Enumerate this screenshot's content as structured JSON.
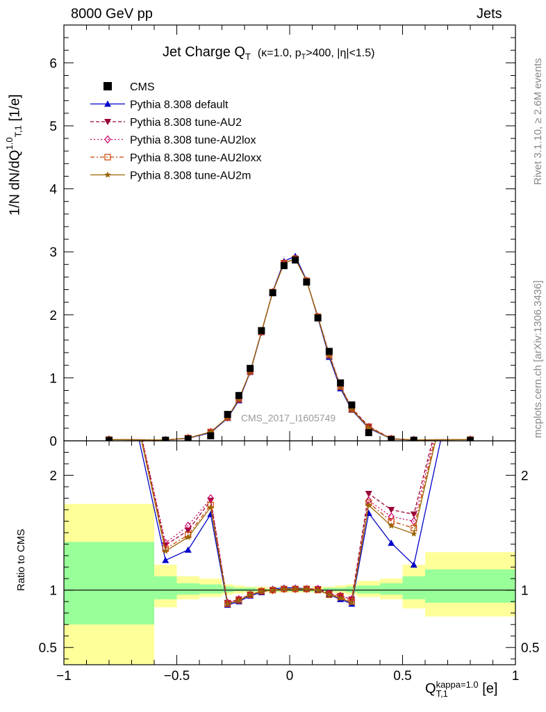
{
  "header": {
    "left": "8000 GeV pp",
    "right": "Jets"
  },
  "side": {
    "rivet": "Rivet 3.1.10, ≥ 2.6M events",
    "mcplots": "mcplots.cern.ch [arXiv:1306.3436]"
  },
  "chart_data": {
    "type": "line",
    "title_main": "Jet Charge Q",
    "title_sub": "T",
    "title_cond": "(κ=1.0, p",
    "title_cond_sub": "T",
    "title_cond_rest": ">400, |η|<1.5)",
    "watermark": "CMS_2017_I1605749",
    "ylabel": "1/N dN/dQ",
    "ylabel_sup": "1.0",
    "ylabel_sub": "T,1",
    "ylabel_unit": " [1/e]",
    "xlabel": "Q",
    "xlabel_sup": "kappa=1.0",
    "xlabel_sub": "T,1",
    "xlabel_unit": " [e]",
    "ratio_ylabel": "Ratio to CMS",
    "xlim": [
      -1.0,
      1.0
    ],
    "ylim": [
      0,
      6.6
    ],
    "ratio_ylim": [
      0.35,
      2.3
    ],
    "x_ticks": [
      "−1",
      "−0.5",
      "0",
      "0.5",
      "1"
    ],
    "x_tick_values": [
      -1,
      -0.5,
      0,
      0.5,
      1
    ],
    "y_ticks": [
      "0",
      "1",
      "2",
      "3",
      "4",
      "5",
      "6"
    ],
    "y_tick_values": [
      0,
      1,
      2,
      3,
      4,
      5,
      6
    ],
    "ratio_ticks": [
      "0.5",
      "1",
      "2"
    ],
    "ratio_tick_values": [
      0.5,
      1,
      2
    ],
    "x": [
      -0.8,
      -0.55,
      -0.45,
      -0.35,
      -0.275,
      -0.225,
      -0.175,
      -0.125,
      -0.075,
      -0.025,
      0.025,
      0.075,
      0.125,
      0.175,
      0.225,
      0.275,
      0.35,
      0.45,
      0.55,
      0.8
    ],
    "cms": [
      0.005,
      0.01,
      0.03,
      0.08,
      0.42,
      0.72,
      1.15,
      1.75,
      2.35,
      2.78,
      2.87,
      2.52,
      1.95,
      1.42,
      0.92,
      0.57,
      0.13,
      0.02,
      0.01,
      0.005
    ],
    "series": [
      {
        "name": "CMS",
        "color": "#000000",
        "marker": "square"
      },
      {
        "name": "Pythia 8.308 default",
        "color": "#0000cc",
        "marker": "triangle-up",
        "values": [
          0.02,
          0.012,
          0.04,
          0.13,
          0.36,
          0.64,
          1.09,
          1.72,
          2.37,
          2.85,
          2.93,
          2.55,
          1.95,
          1.33,
          0.83,
          0.49,
          0.2,
          0.03,
          0.01,
          0.02
        ],
        "ratio": [
          3.5,
          1.26,
          1.35,
          1.66,
          0.87,
          0.9,
          0.95,
          0.98,
          1.01,
          1.02,
          1.02,
          1.01,
          1.0,
          0.96,
          0.92,
          0.88,
          1.67,
          1.41,
          1.22,
          3.5
        ]
      },
      {
        "name": "Pythia 8.308 tune-AU2",
        "color": "#990033",
        "marker": "triangle-down",
        "values": [
          0.02,
          0.014,
          0.045,
          0.14,
          0.37,
          0.66,
          1.1,
          1.73,
          2.36,
          2.82,
          2.89,
          2.54,
          1.97,
          1.38,
          0.87,
          0.52,
          0.23,
          0.035,
          0.015,
          0.02
        ],
        "ratio": [
          3.6,
          1.39,
          1.52,
          1.78,
          0.89,
          0.92,
          0.96,
          0.99,
          1.0,
          1.01,
          1.01,
          1.01,
          1.01,
          0.97,
          0.95,
          0.92,
          1.84,
          1.7,
          1.66,
          3.6
        ]
      },
      {
        "name": "Pythia 8.308 tune-AU2lox",
        "color": "#cc0066",
        "marker": "diamond",
        "values": [
          0.02,
          0.014,
          0.045,
          0.14,
          0.37,
          0.66,
          1.1,
          1.73,
          2.36,
          2.82,
          2.89,
          2.54,
          1.97,
          1.37,
          0.87,
          0.51,
          0.22,
          0.033,
          0.015,
          0.02
        ],
        "ratio": [
          3.6,
          1.41,
          1.56,
          1.8,
          0.89,
          0.92,
          0.96,
          0.99,
          1.0,
          1.01,
          1.01,
          1.01,
          1.01,
          0.97,
          0.95,
          0.92,
          1.78,
          1.64,
          1.6,
          3.6
        ]
      },
      {
        "name": "Pythia 8.308 tune-AU2loxx",
        "color": "#cc4400",
        "marker": "square-open",
        "values": [
          0.02,
          0.013,
          0.043,
          0.14,
          0.37,
          0.66,
          1.1,
          1.73,
          2.36,
          2.82,
          2.89,
          2.54,
          1.97,
          1.36,
          0.86,
          0.5,
          0.22,
          0.033,
          0.015,
          0.02
        ],
        "ratio": [
          3.6,
          1.36,
          1.48,
          1.74,
          0.88,
          0.91,
          0.96,
          0.99,
          1.0,
          1.01,
          1.01,
          1.01,
          1.0,
          0.96,
          0.94,
          0.9,
          1.76,
          1.6,
          1.54,
          3.6
        ]
      },
      {
        "name": "Pythia 8.308 tune-AU2m",
        "color": "#996600",
        "marker": "star",
        "values": [
          0.02,
          0.013,
          0.043,
          0.14,
          0.37,
          0.66,
          1.1,
          1.73,
          2.36,
          2.82,
          2.89,
          2.54,
          1.97,
          1.36,
          0.86,
          0.5,
          0.21,
          0.032,
          0.014,
          0.02
        ],
        "ratio": [
          3.6,
          1.34,
          1.46,
          1.72,
          0.88,
          0.91,
          0.96,
          0.99,
          1.0,
          1.01,
          1.01,
          1.01,
          1.0,
          0.96,
          0.93,
          0.89,
          1.74,
          1.56,
          1.49,
          3.6
        ]
      }
    ],
    "bands": [
      {
        "x0": -1.0,
        "x1": -0.6,
        "g0": 0.7,
        "g1": 1.42,
        "y0": 0.35,
        "y1": 1.75
      },
      {
        "x0": -0.6,
        "x1": -0.5,
        "g0": 0.92,
        "g1": 1.12,
        "y0": 0.85,
        "y1": 1.22
      },
      {
        "x0": -0.5,
        "x1": -0.4,
        "g0": 0.96,
        "g1": 1.06,
        "y0": 0.92,
        "y1": 1.12
      },
      {
        "x0": -0.4,
        "x1": -0.3,
        "g0": 0.97,
        "g1": 1.05,
        "y0": 0.94,
        "y1": 1.1
      },
      {
        "x0": -0.3,
        "x1": -0.25,
        "g0": 0.98,
        "g1": 1.03,
        "y0": 0.96,
        "y1": 1.05
      },
      {
        "x0": -0.25,
        "x1": -0.2,
        "g0": 0.99,
        "g1": 1.02,
        "y0": 0.97,
        "y1": 1.04
      },
      {
        "x0": -0.2,
        "x1": -0.15,
        "g0": 0.99,
        "g1": 1.02,
        "y0": 0.98,
        "y1": 1.03
      },
      {
        "x0": -0.15,
        "x1": -0.1,
        "g0": 0.99,
        "g1": 1.01,
        "y0": 0.98,
        "y1": 1.03
      },
      {
        "x0": -0.1,
        "x1": -0.05,
        "g0": 0.99,
        "g1": 1.01,
        "y0": 0.98,
        "y1": 1.02
      },
      {
        "x0": -0.05,
        "x1": 0.0,
        "g0": 0.99,
        "g1": 1.01,
        "y0": 0.98,
        "y1": 1.02
      },
      {
        "x0": 0.0,
        "x1": 0.05,
        "g0": 0.99,
        "g1": 1.01,
        "y0": 0.98,
        "y1": 1.02
      },
      {
        "x0": 0.05,
        "x1": 0.1,
        "g0": 0.99,
        "g1": 1.01,
        "y0": 0.98,
        "y1": 1.02
      },
      {
        "x0": 0.1,
        "x1": 0.15,
        "g0": 0.99,
        "g1": 1.01,
        "y0": 0.98,
        "y1": 1.03
      },
      {
        "x0": 0.15,
        "x1": 0.2,
        "g0": 0.99,
        "g1": 1.02,
        "y0": 0.98,
        "y1": 1.03
      },
      {
        "x0": 0.2,
        "x1": 0.25,
        "g0": 0.99,
        "g1": 1.02,
        "y0": 0.97,
        "y1": 1.04
      },
      {
        "x0": 0.25,
        "x1": 0.3,
        "g0": 0.98,
        "g1": 1.03,
        "y0": 0.96,
        "y1": 1.05
      },
      {
        "x0": 0.3,
        "x1": 0.4,
        "g0": 0.97,
        "g1": 1.04,
        "y0": 0.94,
        "y1": 1.08
      },
      {
        "x0": 0.4,
        "x1": 0.5,
        "g0": 0.96,
        "g1": 1.06,
        "y0": 0.92,
        "y1": 1.1
      },
      {
        "x0": 0.5,
        "x1": 0.6,
        "g0": 0.92,
        "g1": 1.12,
        "y0": 0.84,
        "y1": 1.22
      },
      {
        "x0": 0.6,
        "x1": 1.0,
        "g0": 0.89,
        "g1": 1.18,
        "y0": 0.77,
        "y1": 1.33
      }
    ],
    "band_colors": {
      "inner": "#99ff99",
      "outer": "#ffff99"
    },
    "legend_position": "top-left",
    "grid": false
  }
}
